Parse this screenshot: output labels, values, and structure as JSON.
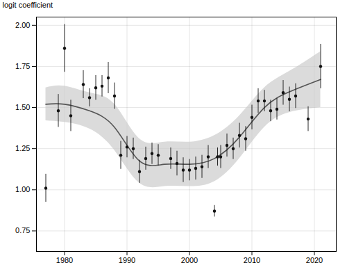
{
  "chart_data": {
    "type": "scatter",
    "ylabel": "logit coefficient",
    "xlim": [
      1975.5,
      2023.5
    ],
    "ylim": [
      0.625,
      2.05
    ],
    "xticks": [
      1980,
      1990,
      2000,
      2010,
      2020
    ],
    "yticks": [
      0.75,
      {
        "value": 1.0,
        "label": "1.00"
      },
      1.25,
      {
        "value": 1.5,
        "label": "1.50"
      },
      1.75,
      {
        "value": 2.0,
        "label": "2.00"
      }
    ],
    "grid": true,
    "series": [
      {
        "type": "area",
        "color": "#c8c8c8",
        "x": [
          1977,
          1980,
          1984,
          1988,
          1992,
          1996,
          2000,
          2004,
          2008,
          2012,
          2016,
          2021
        ],
        "ylo": [
          1.42,
          1.41,
          1.37,
          1.24,
          1.04,
          1.02,
          1.02,
          1.05,
          1.19,
          1.38,
          1.47,
          1.5
        ],
        "yhi": [
          1.62,
          1.63,
          1.59,
          1.52,
          1.31,
          1.29,
          1.29,
          1.33,
          1.45,
          1.62,
          1.72,
          1.84
        ]
      },
      {
        "type": "line",
        "color": "#555555",
        "x": [
          1977,
          1980,
          1984,
          1988,
          1992,
          1996,
          2000,
          2004,
          2008,
          2012,
          2016,
          2021
        ],
        "values": [
          1.52,
          1.52,
          1.48,
          1.38,
          1.175,
          1.155,
          1.155,
          1.19,
          1.32,
          1.5,
          1.595,
          1.67
        ]
      },
      {
        "type": "scatter",
        "color": "#111111",
        "x": [
          1977,
          1979,
          1980,
          1981,
          1983,
          1984,
          1985,
          1986,
          1987,
          1988,
          1989,
          1990,
          1991,
          1992,
          1993,
          1994,
          1995,
          1997,
          1998,
          1999,
          2000,
          2001,
          2004,
          2002,
          2003,
          2004.5,
          2005,
          2006,
          2007,
          2008,
          2009,
          2010,
          2011,
          2012,
          2013,
          2014,
          2015,
          2016,
          2017,
          2019,
          2021
        ],
        "values": [
          1.01,
          1.48,
          1.86,
          1.45,
          1.64,
          1.56,
          1.62,
          1.63,
          1.68,
          1.57,
          1.21,
          1.26,
          1.25,
          1.11,
          1.19,
          1.22,
          1.21,
          1.19,
          1.16,
          1.12,
          1.12,
          1.13,
          0.87,
          1.14,
          1.2,
          1.2,
          1.2,
          1.27,
          1.25,
          1.33,
          1.31,
          1.44,
          1.54,
          1.54,
          1.48,
          1.49,
          1.59,
          1.55,
          1.57,
          1.43,
          1.75
        ],
        "ylo": [
          0.925,
          1.38,
          1.715,
          1.355,
          1.555,
          1.505,
          1.545,
          1.565,
          1.585,
          1.49,
          1.125,
          1.195,
          1.185,
          1.04,
          1.12,
          1.155,
          1.145,
          1.125,
          1.085,
          1.045,
          1.055,
          1.06,
          0.835,
          1.07,
          1.13,
          1.145,
          1.13,
          1.2,
          1.185,
          1.255,
          1.235,
          1.365,
          1.465,
          1.475,
          1.415,
          1.425,
          1.515,
          1.475,
          1.495,
          1.355,
          1.615
        ],
        "yhi": [
          1.095,
          1.58,
          2.005,
          1.545,
          1.725,
          1.615,
          1.695,
          1.695,
          1.775,
          1.65,
          1.295,
          1.325,
          1.315,
          1.18,
          1.26,
          1.285,
          1.275,
          1.255,
          1.235,
          1.195,
          1.185,
          1.2,
          0.905,
          1.21,
          1.27,
          1.255,
          1.27,
          1.34,
          1.315,
          1.405,
          1.385,
          1.515,
          1.615,
          1.605,
          1.545,
          1.555,
          1.665,
          1.625,
          1.645,
          1.505,
          1.885
        ]
      }
    ]
  }
}
